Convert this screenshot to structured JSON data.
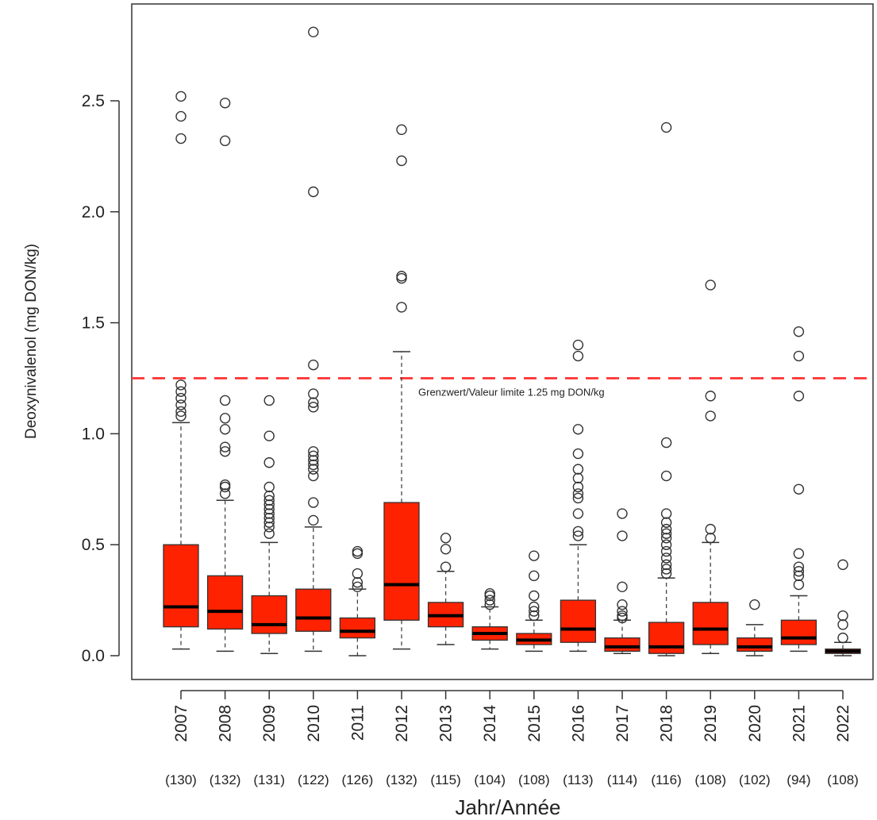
{
  "chart_data": {
    "type": "box",
    "xlabel": "Jahr/Année",
    "ylabel": "Deoxynivalenol (mg DON/kg)",
    "ylim": [
      -0.05,
      2.95
    ],
    "yticks": [
      0.0,
      0.5,
      1.0,
      1.5,
      2.0,
      2.5
    ],
    "ytick_labels": [
      "0.0",
      "0.5",
      "1.0",
      "1.5",
      "2.0",
      "2.5"
    ],
    "box_color": "#ff2200",
    "reference_line": {
      "value": 1.25,
      "label": "Grenzwert/Valeur limite 1.25 mg DON/kg",
      "color": "#ff4040"
    },
    "groups": [
      {
        "year": "2007",
        "n": "(130)",
        "wlo": 0.03,
        "q1": 0.13,
        "median": 0.22,
        "q3": 0.5,
        "whi": 1.05,
        "outliers": [
          1.08,
          1.1,
          1.13,
          1.16,
          1.19,
          1.22,
          2.33,
          2.43,
          2.52
        ]
      },
      {
        "year": "2008",
        "n": "(132)",
        "wlo": 0.02,
        "q1": 0.12,
        "median": 0.2,
        "q3": 0.36,
        "whi": 0.7,
        "outliers": [
          0.73,
          0.76,
          0.77,
          0.92,
          0.94,
          1.02,
          1.07,
          1.15,
          2.32,
          2.49
        ]
      },
      {
        "year": "2009",
        "n": "(131)",
        "wlo": 0.01,
        "q1": 0.1,
        "median": 0.14,
        "q3": 0.27,
        "whi": 0.51,
        "outliers": [
          0.55,
          0.58,
          0.6,
          0.62,
          0.64,
          0.66,
          0.68,
          0.7,
          0.72,
          0.76,
          0.87,
          0.99,
          1.15
        ]
      },
      {
        "year": "2010",
        "n": "(122)",
        "wlo": 0.02,
        "q1": 0.11,
        "median": 0.17,
        "q3": 0.3,
        "whi": 0.58,
        "outliers": [
          0.61,
          0.69,
          0.81,
          0.84,
          0.86,
          0.88,
          0.9,
          0.92,
          1.12,
          1.14,
          1.18,
          1.31,
          2.09,
          2.81
        ]
      },
      {
        "year": "2011",
        "n": "(126)",
        "wlo": 0.0,
        "q1": 0.08,
        "median": 0.11,
        "q3": 0.17,
        "whi": 0.3,
        "outliers": [
          0.31,
          0.33,
          0.37,
          0.46,
          0.47
        ]
      },
      {
        "year": "2012",
        "n": "(132)",
        "wlo": 0.03,
        "q1": 0.16,
        "median": 0.32,
        "q3": 0.69,
        "whi": 1.37,
        "outliers": [
          1.57,
          1.7,
          1.71,
          2.23,
          2.37
        ]
      },
      {
        "year": "2013",
        "n": "(115)",
        "wlo": 0.05,
        "q1": 0.13,
        "median": 0.18,
        "q3": 0.24,
        "whi": 0.38,
        "outliers": [
          0.4,
          0.48,
          0.53
        ]
      },
      {
        "year": "2014",
        "n": "(104)",
        "wlo": 0.03,
        "q1": 0.07,
        "median": 0.1,
        "q3": 0.13,
        "whi": 0.22,
        "outliers": [
          0.23,
          0.25,
          0.27,
          0.28
        ]
      },
      {
        "year": "2015",
        "n": "(108)",
        "wlo": 0.02,
        "q1": 0.05,
        "median": 0.07,
        "q3": 0.1,
        "whi": 0.16,
        "outliers": [
          0.18,
          0.2,
          0.22,
          0.27,
          0.36,
          0.45
        ]
      },
      {
        "year": "2016",
        "n": "(113)",
        "wlo": 0.02,
        "q1": 0.06,
        "median": 0.12,
        "q3": 0.25,
        "whi": 0.5,
        "outliers": [
          0.54,
          0.56,
          0.64,
          0.71,
          0.73,
          0.76,
          0.8,
          0.84,
          0.91,
          1.02,
          1.35,
          1.4
        ]
      },
      {
        "year": "2017",
        "n": "(114)",
        "wlo": 0.01,
        "q1": 0.02,
        "median": 0.04,
        "q3": 0.08,
        "whi": 0.16,
        "outliers": [
          0.17,
          0.18,
          0.2,
          0.23,
          0.31,
          0.54,
          0.64
        ]
      },
      {
        "year": "2018",
        "n": "(116)",
        "wlo": 0.0,
        "q1": 0.01,
        "median": 0.04,
        "q3": 0.15,
        "whi": 0.35,
        "outliers": [
          0.37,
          0.39,
          0.41,
          0.44,
          0.47,
          0.5,
          0.53,
          0.55,
          0.57,
          0.6,
          0.64,
          0.81,
          0.96,
          2.38
        ]
      },
      {
        "year": "2019",
        "n": "(108)",
        "wlo": 0.01,
        "q1": 0.05,
        "median": 0.12,
        "q3": 0.24,
        "whi": 0.51,
        "outliers": [
          0.53,
          0.57,
          1.08,
          1.17,
          1.67
        ]
      },
      {
        "year": "2020",
        "n": "(102)",
        "wlo": 0.0,
        "q1": 0.02,
        "median": 0.04,
        "q3": 0.08,
        "whi": 0.14,
        "outliers": [
          0.23
        ]
      },
      {
        "year": "2021",
        "n": "(94)",
        "wlo": 0.02,
        "q1": 0.05,
        "median": 0.08,
        "q3": 0.16,
        "whi": 0.27,
        "outliers": [
          0.32,
          0.36,
          0.38,
          0.4,
          0.46,
          0.75,
          1.17,
          1.35,
          1.46
        ]
      },
      {
        "year": "2022",
        "n": "(108)",
        "wlo": 0.0,
        "q1": 0.01,
        "median": 0.02,
        "q3": 0.03,
        "whi": 0.06,
        "outliers": [
          0.08,
          0.14,
          0.18,
          0.41
        ]
      }
    ]
  }
}
